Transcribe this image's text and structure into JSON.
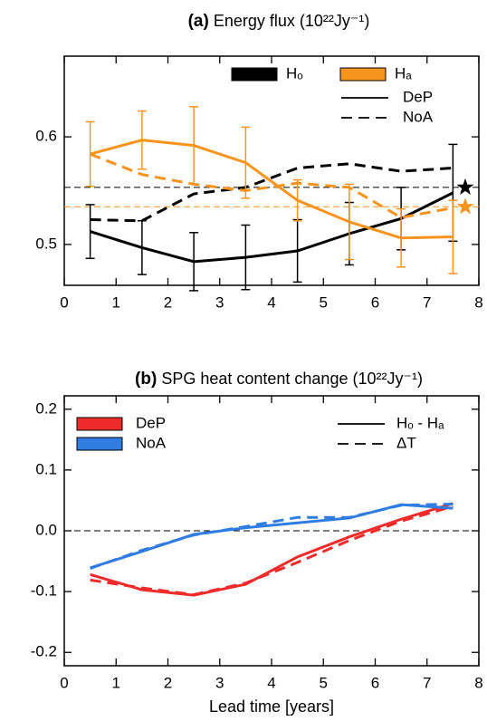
{
  "chart_data": [
    {
      "type": "line",
      "panel_label": "(a)",
      "title": "Energy flux (10²²Jy⁻¹)",
      "x": [
        0.5,
        1.5,
        2.5,
        3.5,
        4.5,
        5.5,
        6.5,
        7.5
      ],
      "xlim": [
        0,
        8
      ],
      "xticks": [
        0,
        1,
        2,
        3,
        4,
        5,
        6,
        7,
        8
      ],
      "ylim": [
        0.462,
        0.675
      ],
      "yticks": [
        0.5,
        0.6
      ],
      "color_legend": [
        {
          "name": "Hₒ",
          "color": "#000000"
        },
        {
          "name": "Hₐ",
          "color": "#f7941d"
        }
      ],
      "style_legend": [
        {
          "name": "DeP",
          "dash": "solid"
        },
        {
          "name": "NoA",
          "dash": "dashed"
        }
      ],
      "series": [
        {
          "color": "#000000",
          "dash": "solid",
          "values": [
            0.512,
            0.497,
            0.484,
            0.488,
            0.494,
            0.51,
            0.524,
            0.548
          ],
          "errors": [
            0.025,
            0.025,
            0.027,
            0.03,
            0.029,
            0.029,
            0.029,
            0.045
          ]
        },
        {
          "color": "#000000",
          "dash": "dashed",
          "values": [
            0.523,
            0.522,
            0.547,
            0.553,
            0.571,
            0.575,
            0.568,
            0.571
          ]
        },
        {
          "color": "#f7941d",
          "dash": "solid",
          "values": [
            0.584,
            0.597,
            0.592,
            0.576,
            0.541,
            0.521,
            0.506,
            0.507
          ],
          "errors": [
            0.03,
            0.027,
            0.036,
            0.033,
            0.019,
            0.035,
            0.027,
            0.034
          ]
        },
        {
          "color": "#f7941d",
          "dash": "dashed",
          "values": [
            0.584,
            0.565,
            0.556,
            0.55,
            0.557,
            0.553,
            0.525,
            0.534
          ]
        }
      ],
      "reference_lines": [
        {
          "value": 0.553,
          "color": "#000000",
          "marker": "star"
        },
        {
          "value": 0.535,
          "color": "#f7941d",
          "marker": "star"
        }
      ]
    },
    {
      "type": "line",
      "panel_label": "(b)",
      "title": "SPG heat content change (10²²Jy⁻¹)",
      "x_label": "Lead time [years]",
      "x": [
        0.5,
        1.5,
        2.5,
        3.5,
        4.5,
        5.5,
        6.5,
        7.5
      ],
      "xlim": [
        0,
        8
      ],
      "xticks": [
        0,
        1,
        2,
        3,
        4,
        5,
        6,
        7,
        8
      ],
      "ylim": [
        -0.222,
        0.222
      ],
      "yticks": [
        -0.2,
        -0.1,
        {
          "value": 0,
          "label": "0.0"
        },
        0.1,
        0.2
      ],
      "color_legend": [
        {
          "name": "DeP",
          "color": "#ee2b2b"
        },
        {
          "name": "NoA",
          "color": "#2f7de1"
        }
      ],
      "style_legend": [
        {
          "name": "Hₒ - Hₐ",
          "dash": "solid"
        },
        {
          "name": "ΔT",
          "dash": "dashed"
        }
      ],
      "series": [
        {
          "color": "#ee2b2b",
          "dash": "solid",
          "values": [
            -0.072,
            -0.097,
            -0.106,
            -0.088,
            -0.043,
            -0.01,
            0.019,
            0.045
          ]
        },
        {
          "color": "#ee2b2b",
          "dash": "dashed",
          "values": [
            -0.081,
            -0.094,
            -0.105,
            -0.086,
            -0.052,
            -0.016,
            0.016,
            0.04
          ]
        },
        {
          "color": "#2f7de1",
          "dash": "solid",
          "values": [
            -0.061,
            -0.034,
            -0.006,
            0.005,
            0.013,
            0.021,
            0.043,
            0.037
          ]
        },
        {
          "color": "#2f7de1",
          "dash": "dashed",
          "values": [
            -0.062,
            -0.032,
            -0.007,
            0.007,
            0.022,
            0.022,
            0.042,
            0.044
          ]
        }
      ],
      "reference_lines": [
        {
          "value": 0,
          "color": "#000000"
        }
      ]
    }
  ]
}
